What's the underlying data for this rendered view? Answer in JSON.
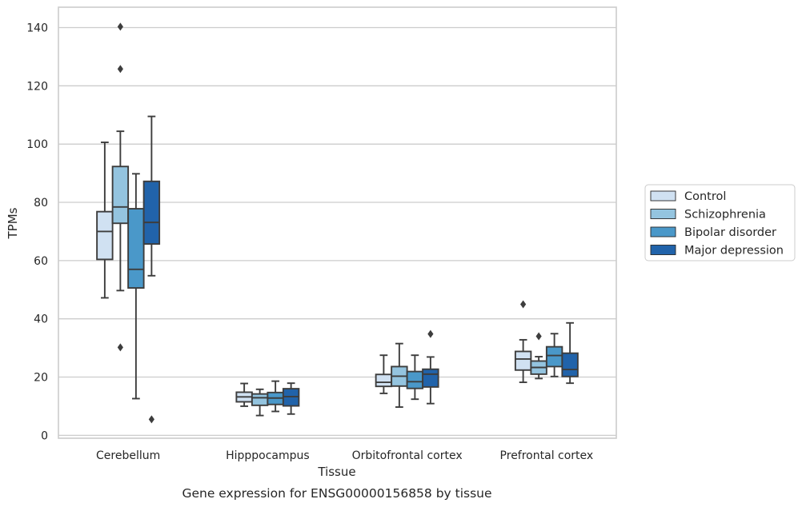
{
  "chart_data": {
    "type": "box",
    "title": "",
    "caption": "Gene expression for ENSG00000156858 by tissue",
    "xlabel": "Tissue",
    "ylabel": "TPMs",
    "ylim": [
      -1,
      147
    ],
    "yticks": [
      0,
      20,
      40,
      60,
      80,
      100,
      120,
      140
    ],
    "grid": "horizontal",
    "legend_position": "right",
    "categories": [
      "Cerebellum",
      "Hipppocampus",
      "Orbitofrontal cortex",
      "Prefrontal cortex"
    ],
    "series": [
      {
        "name": "Control",
        "color": "#d0e1f2",
        "boxes": [
          {
            "whisker_low": 47.2,
            "q1": 60.4,
            "median": 70.0,
            "q3": 76.8,
            "whisker_high": 100.6,
            "outliers": []
          },
          {
            "whisker_low": 10.0,
            "q1": 11.5,
            "median": 13.2,
            "q3": 14.8,
            "whisker_high": 17.8,
            "outliers": []
          },
          {
            "whisker_low": 14.4,
            "q1": 16.8,
            "median": 18.2,
            "q3": 20.9,
            "whisker_high": 27.5,
            "outliers": []
          },
          {
            "whisker_low": 18.2,
            "q1": 22.4,
            "median": 26.2,
            "q3": 28.8,
            "whisker_high": 32.8,
            "outliers": [
              45.0
            ]
          }
        ]
      },
      {
        "name": "Schizophrenia",
        "color": "#94c4df",
        "boxes": [
          {
            "whisker_low": 49.7,
            "q1": 72.8,
            "median": 78.4,
            "q3": 92.3,
            "whisker_high": 104.4,
            "outliers": [
              140.3,
              125.8,
              30.2
            ]
          },
          {
            "whisker_low": 6.8,
            "q1": 10.3,
            "median": 12.9,
            "q3": 14.2,
            "whisker_high": 15.8,
            "outliers": []
          },
          {
            "whisker_low": 9.7,
            "q1": 16.9,
            "median": 20.3,
            "q3": 23.6,
            "whisker_high": 31.5,
            "outliers": []
          },
          {
            "whisker_low": 19.5,
            "q1": 21.0,
            "median": 23.3,
            "q3": 25.5,
            "whisker_high": 27.0,
            "outliers": [
              34.0
            ]
          }
        ]
      },
      {
        "name": "Bipolar disorder",
        "color": "#4a98c9",
        "boxes": [
          {
            "whisker_low": 12.6,
            "q1": 50.6,
            "median": 57.0,
            "q3": 77.8,
            "whisker_high": 89.8,
            "outliers": []
          },
          {
            "whisker_low": 8.2,
            "q1": 10.6,
            "median": 12.8,
            "q3": 14.7,
            "whisker_high": 18.6,
            "outliers": []
          },
          {
            "whisker_low": 12.4,
            "q1": 16.1,
            "median": 18.4,
            "q3": 21.9,
            "whisker_high": 27.5,
            "outliers": []
          },
          {
            "whisker_low": 20.2,
            "q1": 23.6,
            "median": 27.4,
            "q3": 30.4,
            "whisker_high": 34.9,
            "outliers": []
          }
        ]
      },
      {
        "name": "Major depression",
        "color": "#2163aa",
        "boxes": [
          {
            "whisker_low": 54.8,
            "q1": 65.7,
            "median": 73.1,
            "q3": 87.2,
            "whisker_high": 109.5,
            "outliers": [
              5.5
            ]
          },
          {
            "whisker_low": 7.3,
            "q1": 10.1,
            "median": 13.3,
            "q3": 16.0,
            "whisker_high": 17.9,
            "outliers": []
          },
          {
            "whisker_low": 10.9,
            "q1": 16.6,
            "median": 21.0,
            "q3": 22.7,
            "whisker_high": 26.9,
            "outliers": [
              34.8
            ]
          },
          {
            "whisker_low": 17.9,
            "q1": 20.2,
            "median": 22.6,
            "q3": 28.2,
            "whisker_high": 38.6,
            "outliers": []
          }
        ]
      }
    ]
  }
}
